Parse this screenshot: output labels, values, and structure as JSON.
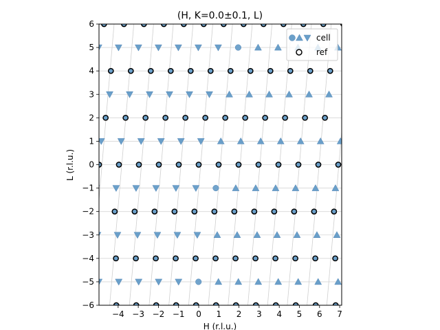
{
  "chart_data": {
    "type": "scatter",
    "title": "(H, K=0.0±0.1, L)",
    "xlabel": "H (r.l.u.)",
    "ylabel": "L (r.l.u.)",
    "xlim": [
      -4.95,
      7.1
    ],
    "ylim": [
      -6,
      6
    ],
    "xticks": [
      -4,
      -3,
      -2,
      -1,
      0,
      1,
      2,
      3,
      4,
      5,
      6,
      7
    ],
    "xtick_labels": [
      "−4",
      "−3",
      "−2",
      "−1",
      "0",
      "1",
      "2",
      "3",
      "4",
      "5",
      "6",
      "7"
    ],
    "yticks": [
      -6,
      -5,
      -4,
      -3,
      -2,
      -1,
      0,
      1,
      2,
      3,
      4,
      5,
      6
    ],
    "ytick_labels": [
      "−6",
      "−5",
      "−4",
      "−3",
      "−2",
      "−1",
      "0",
      "1",
      "2",
      "3",
      "4",
      "5",
      "6"
    ],
    "grid": true,
    "legend_position": "top-right",
    "legend": [
      {
        "label": "cell",
        "markers": [
          "circle",
          "triangle-up",
          "triangle-down"
        ]
      },
      {
        "label": "ref",
        "markers": [
          "open-circle"
        ]
      }
    ],
    "lattice": {
      "h_spacing": 0.99,
      "l_tilt_per_unit": 0.1,
      "row_offsets": {
        "-6": 0.86,
        "-5": -1.0,
        "-4": -0.15,
        "-3": -1.06,
        "-2": -0.21,
        "-1": -1.13,
        "0": 0.0,
        "1": 1.1,
        "2": 1.32,
        "3": 1.52,
        "4": -0.4,
        "5": 0.97,
        "6": 0.25
      },
      "grid_line_offsets": [
        -4.8,
        -3.82,
        -2.84,
        -1.86,
        -0.88,
        0.1,
        1.08,
        2.06,
        3.04,
        4.02,
        5.0,
        5.98,
        6.96
      ]
    },
    "series": [
      {
        "name": "cell",
        "marker": "circle",
        "color": "#6a9fc9",
        "points": [
          [
            2.15,
            5
          ],
          [
            1.3,
            3
          ],
          [
            0.85,
            1
          ],
          [
            0.0,
            0
          ],
          [
            0.7,
            -1
          ],
          [
            0.3,
            -3
          ],
          [
            0.0,
            -5
          ]
        ]
      },
      {
        "name": "cell",
        "marker": "triangle-up",
        "color": "#6a9fc9",
        "points": "right of circle in odd rows"
      },
      {
        "name": "cell",
        "marker": "triangle-down",
        "color": "#6a9fc9",
        "points": "left of circle in odd rows"
      },
      {
        "name": "ref",
        "marker": "open-circle",
        "color": "#000000",
        "points": "even rows"
      }
    ]
  }
}
